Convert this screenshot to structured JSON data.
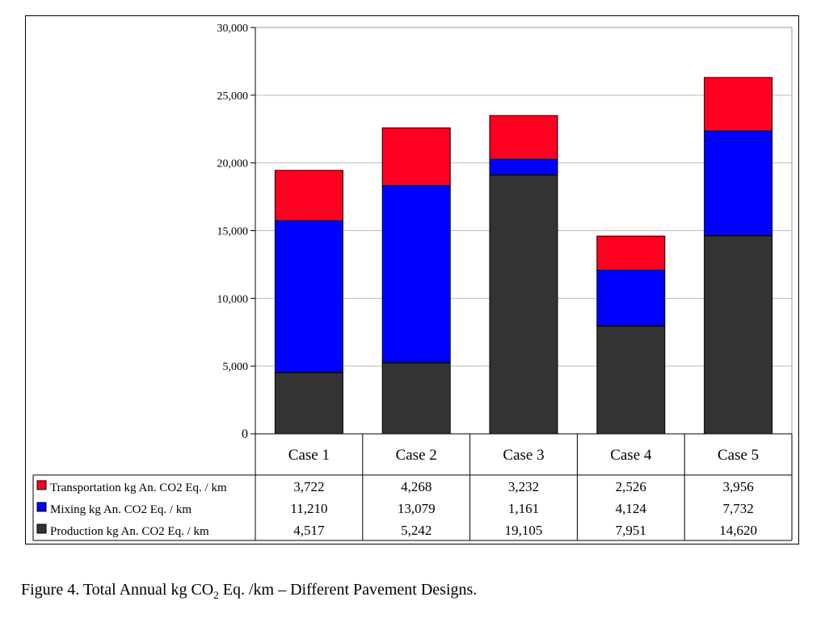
{
  "chart_data": {
    "type": "bar",
    "stacked": true,
    "categories": [
      "Case 1",
      "Case 2",
      "Case 3",
      "Case 4",
      "Case 5"
    ],
    "series": [
      {
        "name": "Production kg An. CO2 Eq. / km",
        "color": "#333333",
        "values": [
          4517,
          5242,
          19105,
          7951,
          14620
        ],
        "labels": [
          "4,517",
          "5,242",
          "19,105",
          "7,951",
          "14,620"
        ]
      },
      {
        "name": "Mixing kg An. CO2 Eq. / km",
        "color": "#0000FF",
        "values": [
          11210,
          13079,
          1161,
          4124,
          7732
        ],
        "labels": [
          "11,210",
          "13,079",
          "1,161",
          "4,124",
          "7,732"
        ]
      },
      {
        "name": "Transportation kg An. CO2 Eq. / km",
        "color": "#FF0020",
        "values": [
          3722,
          4268,
          3232,
          2526,
          3956
        ],
        "labels": [
          "3,722",
          "4,268",
          "3,232",
          "2,526",
          "3,956"
        ]
      }
    ],
    "table_order": [
      2,
      1,
      0
    ],
    "ylim": [
      0,
      30000
    ],
    "yticks": [
      0,
      5000,
      10000,
      15000,
      20000,
      25000,
      30000
    ],
    "ytick_labels": [
      "0",
      "5,000",
      "10,000",
      "15,000",
      "20,000",
      "25,000",
      "30,000"
    ],
    "grid": true,
    "legend": "data-table-below"
  },
  "caption": {
    "prefix": "Figure 4. Total Annual kg CO",
    "subscript": "2",
    "suffix": " Eq. /km – Different Pavement Designs."
  }
}
